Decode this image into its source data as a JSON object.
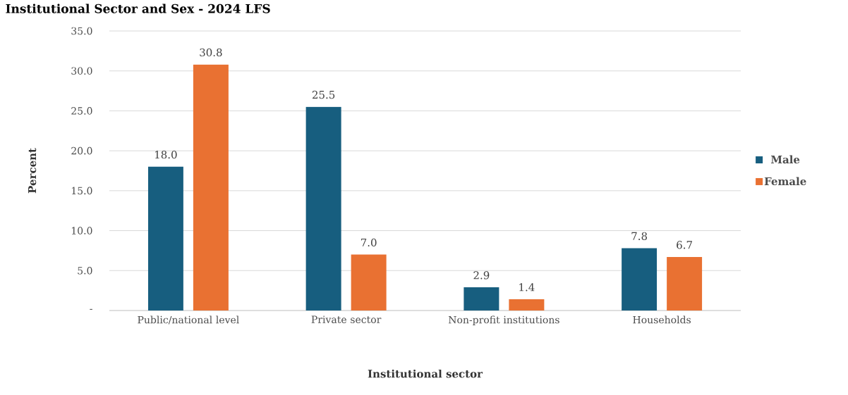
{
  "chart_data": {
    "type": "bar",
    "title": "Institutional Sector and Sex - 2024 LFS",
    "xlabel": "Institutional sector",
    "ylabel": "Percent",
    "categories": [
      "Public/national level",
      "Private sector",
      "Non-profit institutions",
      "Households"
    ],
    "series": [
      {
        "name": "Male",
        "color": "#175e7f",
        "values": [
          18.0,
          25.5,
          2.9,
          7.8
        ],
        "value_labels": [
          "18.0",
          "25.5",
          "2.9",
          "7.8"
        ]
      },
      {
        "name": "Female",
        "color": "#e97132",
        "values": [
          30.8,
          7.0,
          1.4,
          6.7
        ],
        "value_labels": [
          "30.8",
          "7.0",
          "1.4",
          "6.7"
        ]
      }
    ],
    "ylim": [
      0,
      35
    ],
    "yticks": [
      {
        "value": 0,
        "label": "-"
      },
      {
        "value": 5,
        "label": "5.0"
      },
      {
        "value": 10,
        "label": "10.0"
      },
      {
        "value": 15,
        "label": "15.0"
      },
      {
        "value": 20,
        "label": "20.0"
      },
      {
        "value": 25,
        "label": "25.0"
      },
      {
        "value": 30,
        "label": "30.0"
      },
      {
        "value": 35,
        "label": "35.0"
      }
    ],
    "grid": "y",
    "legend": "right"
  }
}
